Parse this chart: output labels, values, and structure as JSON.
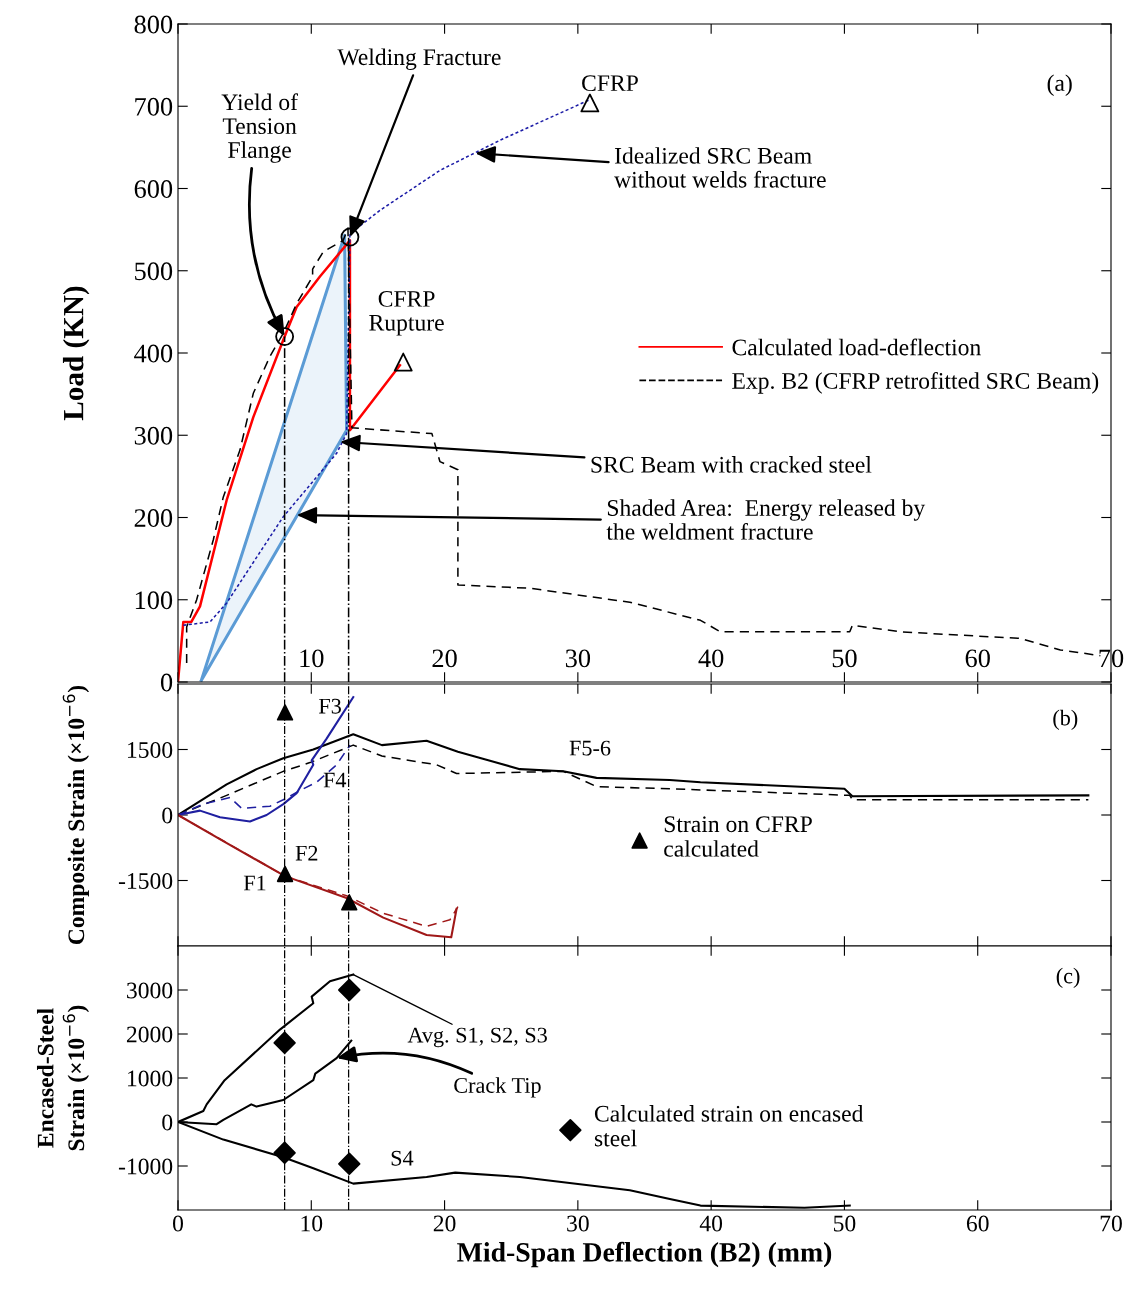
{
  "chart_data": [
    {
      "type": "line",
      "ylabel": "Load (KN)",
      "xlim": [
        0,
        70
      ],
      "ylim": [
        0,
        800
      ],
      "xticks": [
        {
          "value": 0,
          "label": null
        },
        10,
        20,
        30,
        40,
        50,
        60,
        70
      ],
      "yticks": [
        0,
        100,
        200,
        300,
        400,
        500,
        600,
        700,
        800
      ],
      "legend": "center right",
      "grid": false,
      "series": [
        {
          "type": "area",
          "color": "#5b9bd5",
          "x": [
            1.75,
            12.5,
            12.65,
            1.75
          ],
          "values": [
            2,
            543,
            306,
            2
          ]
        },
        {
          "name": "Calculated load-deflection",
          "color": "#ff0000",
          "line_style": "solid",
          "x": [
            0,
            0.4,
            1.0,
            1.65,
            3.65,
            5.65,
            8.0,
            8.9,
            10.65,
            12.5,
            12.9,
            12.9,
            16.65
          ],
          "values": [
            0,
            73,
            73,
            92,
            221,
            322,
            420,
            456,
            493,
            529,
            537,
            306,
            385
          ]
        },
        {
          "name": "Exp. B2 (CFRP retrofitted SRC Beam)",
          "color": "#000000",
          "line_style": "dashed",
          "x": [
            0.65,
            0.65,
            1.4,
            2.65,
            3.4,
            4.65,
            5.65,
            6.9,
            7.9,
            8.9,
            10.1,
            10.1,
            10.9,
            12.4,
            12.75,
            13.05,
            19.05,
            19.65,
            21,
            21,
            26.4,
            33.9,
            39.2,
            40.7,
            50.4,
            50.6,
            54.2,
            63.2,
            66.2,
            69.2
          ],
          "values": [
            23,
            67,
            100,
            173,
            225,
            282,
            351,
            396,
            424,
            460,
            493,
            502,
            523,
            537,
            552,
            309,
            302,
            268,
            258,
            118,
            114,
            97,
            75,
            61,
            61,
            69,
            61,
            53,
            39,
            32
          ]
        },
        {
          "color": "#1a1aa6",
          "line_style": "dotted",
          "x": [
            0.4,
            2.4,
            3.65,
            7.9,
            11.9,
            12.65,
            12.9,
            15.2,
            19.65,
            24.2,
            30.9
          ],
          "values": [
            69,
            73,
            96,
            201,
            278,
            302,
            545,
            574,
            622,
            659,
            708
          ]
        },
        {
          "color": "#000000",
          "line_style": "dashdot",
          "x": [
            8.0,
            8.0
          ],
          "values": [
            0,
            420
          ]
        },
        {
          "color": "#000000",
          "line_style": "dashdot",
          "x": [
            12.8,
            12.8
          ],
          "values": [
            0,
            540
          ]
        },
        {
          "type": "scatter",
          "marker": "circle",
          "color": "#000000",
          "x": [
            8.0,
            12.9
          ],
          "values": [
            420,
            541
          ]
        },
        {
          "type": "scatter",
          "marker": "triangle",
          "color": "#000000",
          "x": [
            16.9,
            30.9
          ],
          "values": [
            389,
            704
          ]
        }
      ],
      "annotations": [
        "(a)",
        {
          "text": "Yield of\nTension\nFlange",
          "x": 8.0,
          "y": 420
        },
        {
          "text": "Welding Fracture",
          "x": 12.9,
          "y": 541
        },
        "CFRP",
        {
          "text": "Idealized SRC Beam\nwithout welds fracture",
          "x": 22.3,
          "y": 643
        },
        "CFRP\nRupture",
        {
          "text": "SRC Beam with cracked steel",
          "x": 12.15,
          "y": 292
        },
        {
          "text": "Shaded Area:  Energy released by\nthe weldment fracture",
          "x": 8.9,
          "y": 203
        }
      ]
    },
    {
      "type": "line",
      "ylabel": "Composite Strain (×10$^{−6}$)",
      "xlim": [
        0,
        70
      ],
      "ylim": [
        -3000,
        3000
      ],
      "xticks": [
        0,
        10,
        20,
        30,
        40,
        50,
        60,
        70
      ],
      "yticks": [
        -1500,
        0,
        1500
      ],
      "tick_labels": "y",
      "legend": "center",
      "grid": false,
      "ref_lines": [
        {
          "axis": "x",
          "value": 8.0,
          "line_style": "dashdot",
          "color": "#000000"
        },
        {
          "axis": "x",
          "value": 12.8,
          "line_style": "dashdot",
          "color": "#000000"
        }
      ],
      "series": [
        {
          "color": "#000000",
          "line_style": "solid",
          "x": [
            0,
            3.65,
            5.9,
            7.9,
            10.15,
            13.15,
            15.3,
            18.65,
            21.0,
            25.65,
            28.9,
            31.4,
            36.9,
            39.2,
            50.0,
            50.6,
            68.3
          ],
          "values": [
            0,
            700,
            1050,
            1300,
            1500,
            1850,
            1600,
            1700,
            1450,
            1050,
            1000,
            850,
            800,
            750,
            600,
            430,
            450
          ]
        },
        {
          "color": "#000000",
          "line_style": "dashed",
          "x": [
            0,
            3.65,
            7.9,
            9.9,
            13.15,
            15.3,
            19.4,
            20.9,
            28.9,
            31.4,
            36.9,
            50.4,
            50.6,
            68.3
          ],
          "values": [
            0,
            450,
            1000,
            1200,
            1600,
            1350,
            1150,
            950,
            1000,
            650,
            600,
            450,
            350,
            350
          ]
        },
        {
          "color": "#1f1fa0",
          "line_style": "solid",
          "x": [
            0,
            1.65,
            3.15,
            5.4,
            6.65,
            7.9,
            8.9,
            10.15,
            10.03,
            11.15,
            13.15
          ],
          "values": [
            0,
            100,
            -50,
            -150,
            0,
            250,
            500,
            1150,
            1250,
            1750,
            2700
          ]
        },
        {
          "color": "#1f1fa0",
          "line_style": "dashed",
          "x": [
            0,
            1.9,
            3.9,
            4.78,
            6.9,
            7.9,
            9.4,
            10.4,
            11.9,
            12.9
          ],
          "values": [
            0,
            250,
            400,
            150,
            200,
            350,
            600,
            750,
            1150,
            1600
          ]
        },
        {
          "color": "#a01818",
          "line_style": "solid",
          "x": [
            0,
            3.4,
            8.03,
            12.65,
            15.4,
            18.65,
            20.5,
            20.9
          ],
          "values": [
            0,
            -600,
            -1400,
            -1900,
            -2350,
            -2750,
            -2800,
            -2150
          ]
        },
        {
          "color": "#a01818",
          "line_style": "dashed",
          "x": [
            0,
            8.03,
            12.65,
            15.4,
            18.65,
            20.4,
            21.0
          ],
          "values": [
            0,
            -1400,
            -1850,
            -2250,
            -2550,
            -2400,
            -2100
          ]
        },
        {
          "type": "scatter",
          "name": "Strain on CFRP\ncalculated",
          "marker": "triangle",
          "color": "#000000",
          "x": [
            8.03,
            8.03,
            12.85
          ],
          "values": [
            2350,
            -1350,
            -2000
          ]
        }
      ],
      "annotations": [
        "(b)",
        "F3",
        "F4",
        "F5-6",
        "F2",
        "F1"
      ]
    },
    {
      "type": "line",
      "ylabel": "Encased-Steel\nStrain (×10$^{−6}$)",
      "xlabel": "Mid-Span Deflection (B2) (mm)",
      "xlim": [
        0,
        70
      ],
      "ylim": [
        -2000,
        4000
      ],
      "xticks": [
        0,
        10,
        20,
        30,
        40,
        50,
        60,
        70
      ],
      "yticks": [
        -1000,
        0,
        1000,
        2000,
        3000
      ],
      "legend": "center",
      "grid": false,
      "ref_lines": [
        {
          "axis": "x",
          "value": 8.0,
          "line_style": "dashdot",
          "color": "#000000"
        },
        {
          "axis": "x",
          "value": 12.8,
          "line_style": "dashdot",
          "color": "#000000"
        }
      ],
      "series": [
        {
          "color": "#000000",
          "line_style": "solid",
          "x": [
            0,
            1.9,
            2.15,
            3.5,
            7.65,
            10.15,
            10.03,
            11.4,
            13.15
          ],
          "values": [
            0,
            250,
            400,
            950,
            2100,
            2700,
            2850,
            3200,
            3350
          ]
        },
        {
          "color": "#000000",
          "line_style": "solid",
          "x": [
            0,
            2.9,
            3.4,
            5.5,
            5.9,
            7.9,
            10.15,
            10.3,
            11.9,
            13.0
          ],
          "values": [
            0,
            -50,
            50,
            400,
            350,
            500,
            950,
            1100,
            1450,
            1850
          ]
        },
        {
          "color": "#000000",
          "line_style": "solid",
          "x": [
            0,
            3.4,
            7.9,
            10.15,
            13.15,
            18.65,
            20.8,
            25.65,
            33.9,
            36.9,
            39.2,
            47,
            50.4
          ],
          "values": [
            0,
            -400,
            -800,
            -1050,
            -1400,
            -1250,
            -1150,
            -1250,
            -1550,
            -1750,
            -1900,
            -1950,
            -1900
          ]
        },
        {
          "type": "scatter",
          "name": "Calculated strain on encased\nsteel",
          "marker": "diamond",
          "color": "#000000",
          "x": [
            8.0,
            12.85,
            8.0,
            12.85
          ],
          "values": [
            1800,
            3000,
            -700,
            -950
          ]
        }
      ],
      "annotations": [
        "(c)",
        {
          "text": "Avg. S1, S2, S3",
          "x": 13.15,
          "y": 3350
        },
        {
          "text": "Crack Tip",
          "x": 11.9,
          "y": 1450
        },
        "S4"
      ]
    }
  ]
}
